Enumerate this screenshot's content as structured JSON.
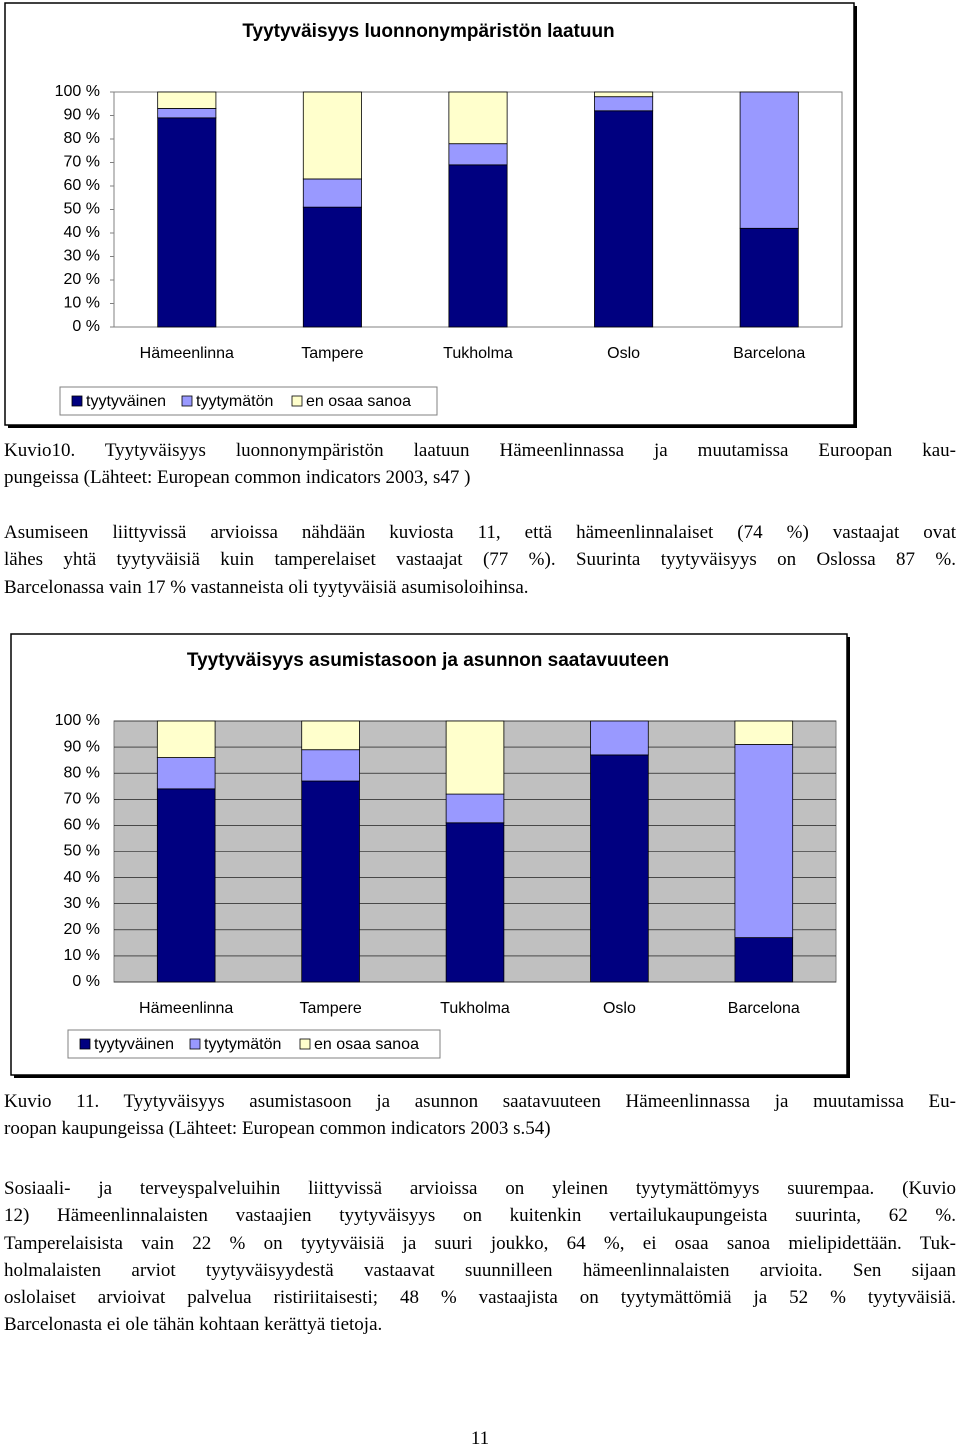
{
  "chart_data": [
    {
      "type": "stacked_bar",
      "title": "Tyytyväisyys luonnonympäristön laatuun",
      "categories": [
        "Hämeenlinna",
        "Tampere",
        "Tukholma",
        "Oslo",
        "Barcelona"
      ],
      "series": [
        {
          "name": "tyytyväinen",
          "color": "#000080",
          "values": [
            89,
            51,
            69,
            92,
            42
          ]
        },
        {
          "name": "tyytymätön",
          "color": "#9999ff",
          "values": [
            4,
            12,
            9,
            6,
            58
          ]
        },
        {
          "name": "en osaa sanoa",
          "color": "#ffffcc",
          "values": [
            7,
            37,
            22,
            2,
            0
          ]
        }
      ],
      "ylim": [
        0,
        100
      ],
      "yticks": [
        {
          "value": 0,
          "label": "0 %"
        },
        {
          "value": 10,
          "label": "10 %"
        },
        {
          "value": 20,
          "label": "20 %"
        },
        {
          "value": 30,
          "label": "30 %"
        },
        {
          "value": 40,
          "label": "40 %"
        },
        {
          "value": 50,
          "label": "50 %"
        },
        {
          "value": 60,
          "label": "60 %"
        },
        {
          "value": 70,
          "label": "70 %"
        },
        {
          "value": 80,
          "label": "80 %"
        },
        {
          "value": 90,
          "label": "90 %"
        },
        {
          "value": 100,
          "label": "100 %"
        }
      ],
      "grid": false,
      "plot_background": "#ffffff",
      "legend": "bottom-left"
    },
    {
      "type": "stacked_bar",
      "title": "Tyytyväisyys asumistasoon ja asunnon saatavuuteen",
      "categories": [
        "Hämeenlinna",
        "Tampere",
        "Tukholma",
        "Oslo",
        "Barcelona"
      ],
      "series": [
        {
          "name": "tyytyväinen",
          "color": "#000080",
          "values": [
            74,
            77,
            61,
            87,
            17
          ]
        },
        {
          "name": "tyytymätön",
          "color": "#9999ff",
          "values": [
            12,
            12,
            11,
            13,
            74
          ]
        },
        {
          "name": "en osaa sanoa",
          "color": "#ffffcc",
          "values": [
            14,
            11,
            28,
            0,
            9
          ]
        }
      ],
      "ylim": [
        0,
        100
      ],
      "yticks": [
        {
          "value": 0,
          "label": "0 %"
        },
        {
          "value": 10,
          "label": "10 %"
        },
        {
          "value": 20,
          "label": "20 %"
        },
        {
          "value": 30,
          "label": "30 %"
        },
        {
          "value": 40,
          "label": "40 %"
        },
        {
          "value": 50,
          "label": "50 %"
        },
        {
          "value": 60,
          "label": "60 %"
        },
        {
          "value": 70,
          "label": "70 %"
        },
        {
          "value": 80,
          "label": "80 %"
        },
        {
          "value": 90,
          "label": "90 %"
        },
        {
          "value": 100,
          "label": "100 %"
        }
      ],
      "grid": true,
      "plot_background": "#c0c0c0",
      "legend": "bottom-left"
    }
  ],
  "blocks": [
    {
      "lines": [
        "Kuvio10. Tyytyväisyys luonnonympäristön laatuun Hämeenlinnassa ja muutamissa Euroopan kau-",
        "pungeissa (Lähteet: European common indicators 2003, s47 )"
      ]
    },
    {
      "lines": [
        "Asumiseen liittyvissä arvioissa nähdään kuviosta 11, että hämeenlinnalaiset (74 %) vastaajat ovat",
        "lähes yhtä tyytyväisiä kuin tamperelaiset vastaajat (77 %). Suurinta tyytyväisyys on Oslossa 87 %.",
        "Barcelonassa vain 17 % vastanneista oli tyytyväisiä asumisoloihinsa."
      ]
    },
    {
      "lines": [
        "Kuvio 11. Tyytyväisyys asumistasoon ja asunnon saatavuuteen Hämeenlinnassa ja muutamissa Eu-",
        "roopan kaupungeissa (Lähteet: European common indicators 2003 s.54)"
      ]
    },
    {
      "lines": [
        "Sosiaali- ja terveyspalveluihin liittyvissä arvioissa on yleinen tyytymättömyys suurempaa. (Kuvio",
        "12) Hämeenlinnalaisten vastaajien tyytyväisyys on kuitenkin vertailukaupungeista suurinta, 62 %.",
        "Tamperelaisista vain 22 % on tyytyväisiä ja suuri joukko, 64 %, ei osaa sanoa mielipidettään. Tuk-",
        "holmalaisten arviot tyytyväisyydestä vastaavat suunnilleen hämeenlinnalaisten arvioita. Sen sijaan",
        "oslolaiset arvioivat palvelua ristiriitaisesti; 48 % vastaajista on tyytymättömiä ja 52 % tyytyväisiä.",
        "Barcelonasta ei ole tähän kohtaan kerättyä tietoja."
      ]
    }
  ],
  "page_number": "11"
}
